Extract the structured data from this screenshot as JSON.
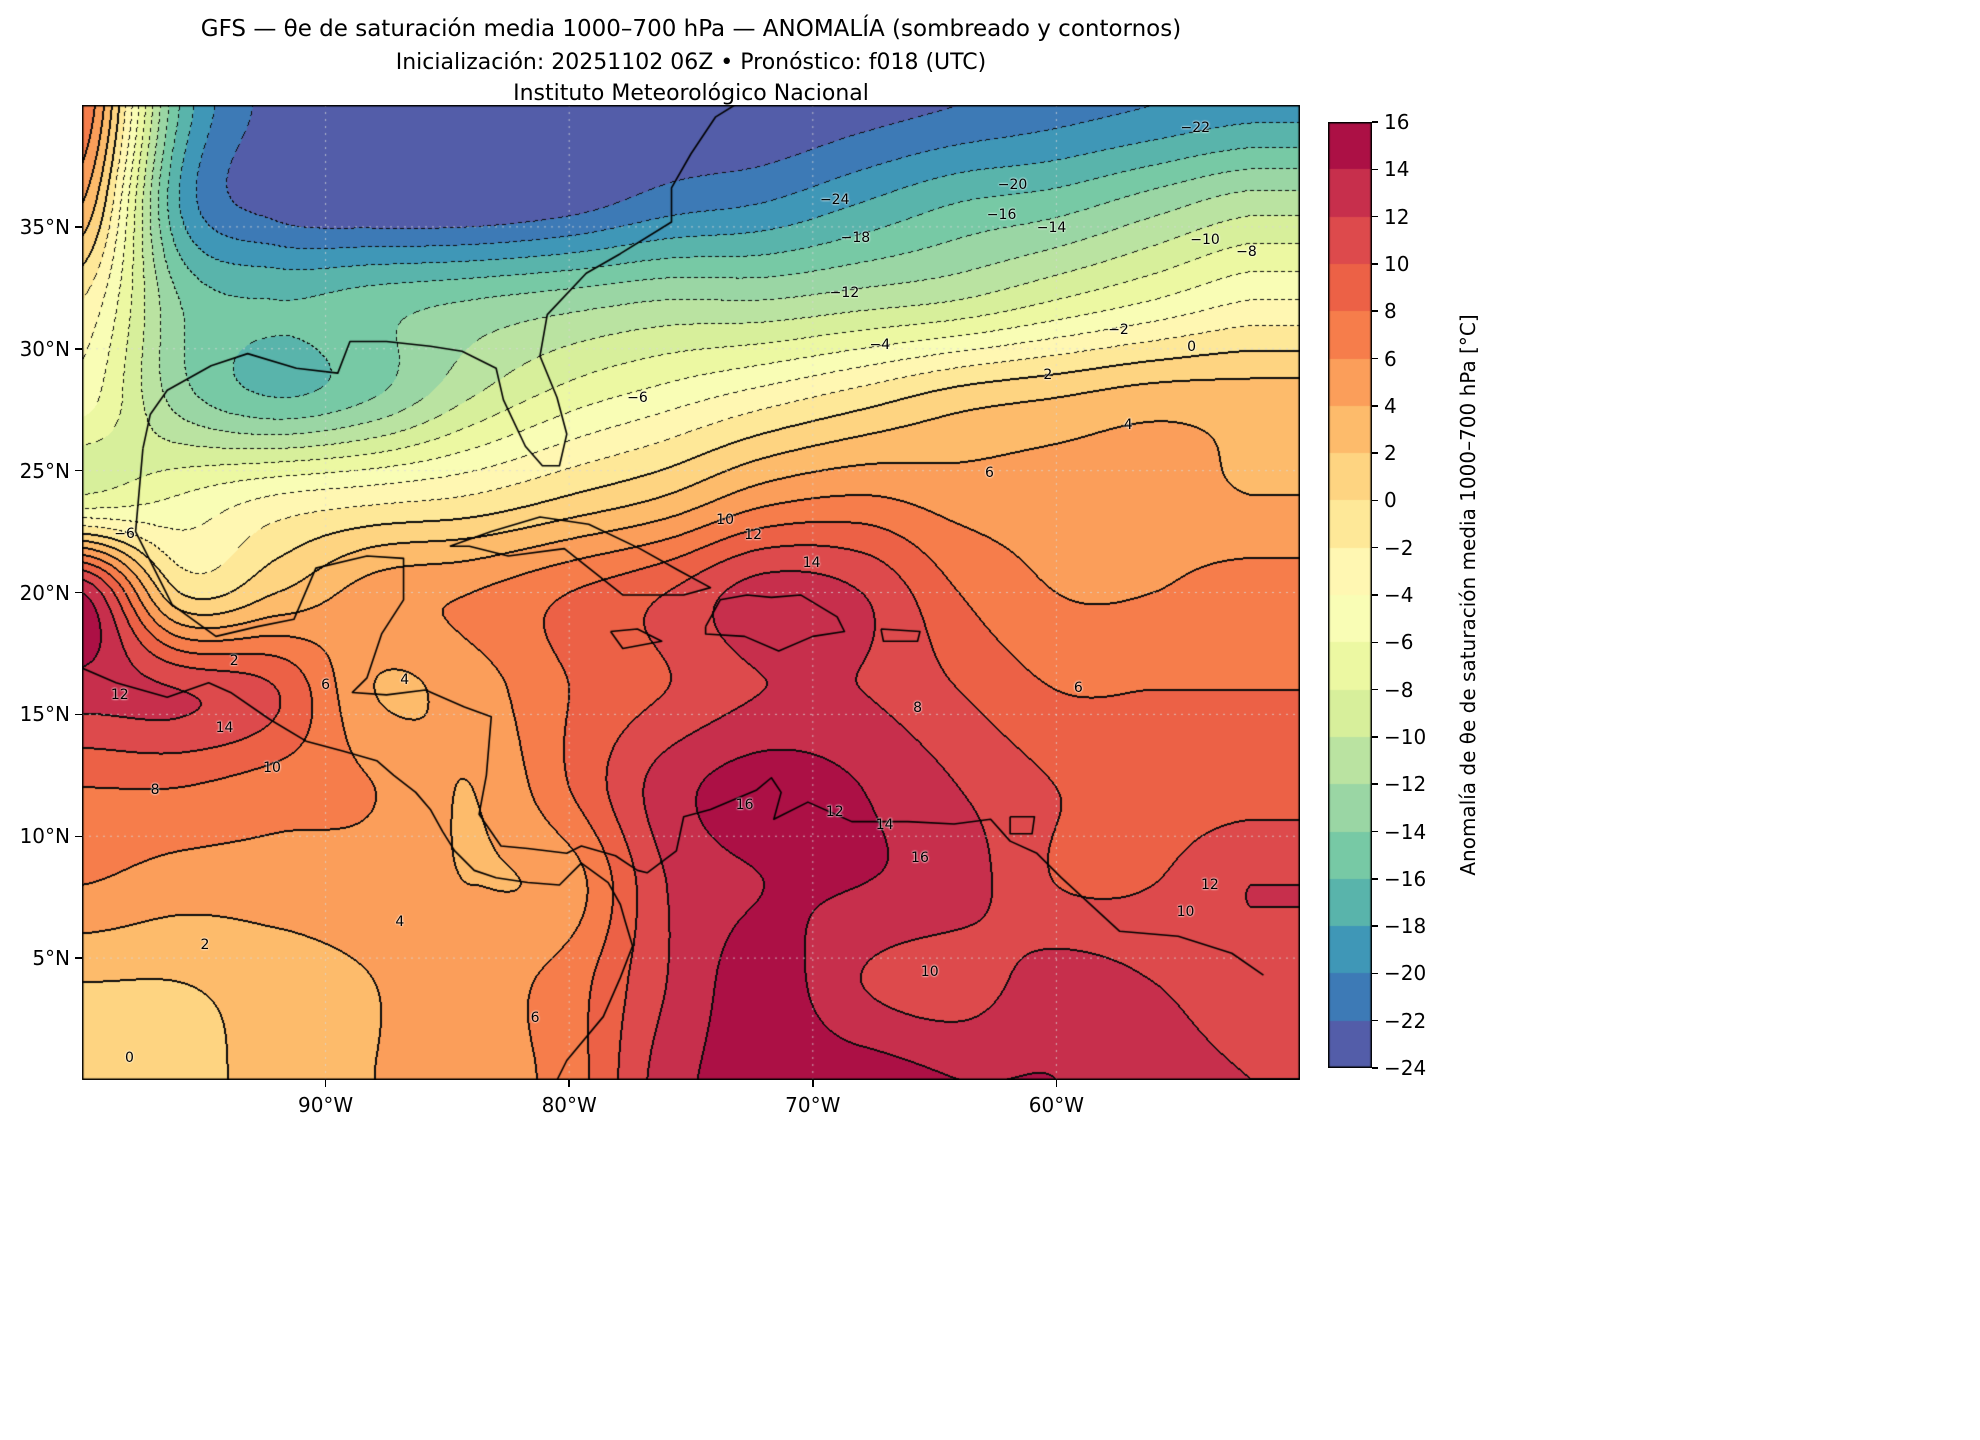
{
  "header": {
    "title_line1": "GFS — θe de saturación media 1000–700 hPa — ANOMALÍA (sombreado y contornos)",
    "title_line2": "Inicialización: 20251102 06Z   •   Pronóstico: f018 (UTC)",
    "title_line3": "Instituto Meteorológico Nacional"
  },
  "chart_data": {
    "type": "heatmap",
    "title": "GFS — θe de saturación media 1000–700 hPa — ANOMALÍA (sombreado y contornos)",
    "subtitle": "Inicialización: 20251102 06Z  •  Pronóstico: f018 (UTC)",
    "source": "Instituto Meteorológico Nacional",
    "lon_range": [
      -100,
      -50
    ],
    "lat_range": [
      0,
      40
    ],
    "contour_interval": 2,
    "negative_contour_style": "dotted",
    "positive_contour_style": "solid",
    "x_ticks": [
      {
        "label": "90°W",
        "lon": -90
      },
      {
        "label": "80°W",
        "lon": -80
      },
      {
        "label": "70°W",
        "lon": -70
      },
      {
        "label": "60°W",
        "lon": -60
      }
    ],
    "y_ticks": [
      {
        "label": "35°N",
        "lat": 35
      },
      {
        "label": "30°N",
        "lat": 30
      },
      {
        "label": "25°N",
        "lat": 25
      },
      {
        "label": "20°N",
        "lat": 20
      },
      {
        "label": "15°N",
        "lat": 15
      },
      {
        "label": "10°N",
        "lat": 10
      },
      {
        "label": "5°N",
        "lat": 5
      }
    ],
    "gridlines": {
      "lons": [
        -90,
        -80,
        -70,
        -60
      ],
      "lats": [
        5,
        10,
        15,
        20,
        25,
        30,
        35
      ]
    },
    "colorbar": {
      "label": "Anomalía de θe de saturación media 1000–700 hPa [°C]",
      "min": -24,
      "max": 16,
      "colormap": "Spectral_r",
      "spectral_anchors": [
        "#9e0142",
        "#d53e4f",
        "#f46d43",
        "#fdae61",
        "#fee08b",
        "#ffffbf",
        "#e6f598",
        "#abdda4",
        "#66c2a5",
        "#3288bd",
        "#5e4fa2"
      ],
      "tick_values": [
        16,
        14,
        12,
        10,
        8,
        6,
        4,
        2,
        0,
        -2,
        -4,
        -6,
        -8,
        -10,
        -12,
        -14,
        -16,
        -18,
        -20,
        -22,
        -24
      ],
      "tick_labels": [
        "16",
        "14",
        "12",
        "10",
        "8",
        "6",
        "4",
        "2",
        "0",
        "−2",
        "−4",
        "−6",
        "−8",
        "−10",
        "−12",
        "−14",
        "−16",
        "−18",
        "−20",
        "−22",
        "−24"
      ]
    },
    "grid": {
      "lons": [
        -100,
        -96,
        -92,
        -88,
        -84,
        -80,
        -76,
        -72,
        -68,
        -64,
        -60,
        -56,
        -52
      ],
      "lats": [
        40,
        36,
        32,
        28,
        24,
        20,
        16,
        12,
        8,
        4,
        0
      ],
      "values": [
        [
          8,
          -16,
          -23,
          -25,
          -25,
          -25,
          -24,
          -24,
          -23,
          -22,
          -21,
          -20,
          -19
        ],
        [
          4,
          -18,
          -23,
          -24,
          -24,
          -23,
          -21,
          -20,
          -18,
          -16,
          -15,
          -13,
          -11
        ],
        [
          -2,
          -14,
          -16,
          -15,
          -14,
          -13,
          -12,
          -12,
          -11,
          -10,
          -8,
          -6,
          -4
        ],
        [
          -5,
          -13,
          -16,
          -14,
          -10,
          -7,
          -5,
          -3,
          -1,
          1,
          2,
          3,
          3
        ],
        [
          -8,
          -6,
          -4,
          -3,
          -2,
          0,
          2,
          5,
          6,
          5,
          5,
          5,
          4
        ],
        [
          14,
          0,
          2,
          5,
          6,
          8,
          10,
          13,
          12,
          8,
          6,
          6,
          7
        ],
        [
          13,
          12,
          10,
          4,
          5,
          8,
          10,
          12,
          12,
          10,
          8,
          8,
          8
        ],
        [
          8,
          8,
          7,
          6,
          4,
          8,
          13,
          15,
          14,
          12,
          10,
          9,
          9
        ],
        [
          6,
          5,
          5,
          5,
          4,
          5,
          12,
          14,
          14,
          13,
          10,
          10,
          12
        ],
        [
          2,
          2,
          3,
          4,
          5,
          7,
          12,
          15,
          12,
          11,
          13,
          12,
          11
        ],
        [
          0,
          1,
          3,
          4,
          5,
          7,
          13,
          15,
          15,
          14,
          14,
          13,
          12
        ]
      ]
    },
    "contour_labels": [
      {
        "t": "−24",
        "x": 61.8,
        "y": 9.7
      },
      {
        "t": "−22",
        "x": 91.4,
        "y": 2.4
      },
      {
        "t": "−20",
        "x": 76.4,
        "y": 8.2
      },
      {
        "t": "−18",
        "x": 63.5,
        "y": 13.6
      },
      {
        "t": "−16",
        "x": 75.5,
        "y": 11.3
      },
      {
        "t": "−14",
        "x": 79.6,
        "y": 12.6
      },
      {
        "t": "−12",
        "x": 62.6,
        "y": 19.3
      },
      {
        "t": "−10",
        "x": 92.2,
        "y": 13.8
      },
      {
        "t": "−8",
        "x": 95.6,
        "y": 15.1
      },
      {
        "t": "−6",
        "x": 45.6,
        "y": 30.1
      },
      {
        "t": "−4",
        "x": 65.5,
        "y": 24.6
      },
      {
        "t": "−2",
        "x": 85.1,
        "y": 23.1
      },
      {
        "t": "0",
        "x": 91.1,
        "y": 24.8
      },
      {
        "t": "2",
        "x": 79.3,
        "y": 27.7
      },
      {
        "t": "4",
        "x": 85.9,
        "y": 32.8
      },
      {
        "t": "6",
        "x": 74.5,
        "y": 37.7
      },
      {
        "t": "10",
        "x": 52.8,
        "y": 42.6
      },
      {
        "t": "12",
        "x": 55.1,
        "y": 44.1
      },
      {
        "t": "14",
        "x": 59.9,
        "y": 47.0
      },
      {
        "t": "6",
        "x": 81.8,
        "y": 59.8
      },
      {
        "t": "8",
        "x": 68.6,
        "y": 61.8
      },
      {
        "t": "10",
        "x": 15.6,
        "y": 68.0
      },
      {
        "t": "8",
        "x": 6.0,
        "y": 70.3
      },
      {
        "t": "14",
        "x": 11.7,
        "y": 63.9
      },
      {
        "t": "12",
        "x": 3.1,
        "y": 60.5
      },
      {
        "t": "16",
        "x": 54.4,
        "y": 71.8
      },
      {
        "t": "12",
        "x": 61.8,
        "y": 72.5
      },
      {
        "t": "14",
        "x": 65.9,
        "y": 73.8
      },
      {
        "t": "16",
        "x": 68.8,
        "y": 77.2
      },
      {
        "t": "12",
        "x": 92.6,
        "y": 80.0
      },
      {
        "t": "10",
        "x": 90.6,
        "y": 82.8
      },
      {
        "t": "10",
        "x": 69.6,
        "y": 88.9
      },
      {
        "t": "6",
        "x": 37.2,
        "y": 93.6
      },
      {
        "t": "4",
        "x": 26.1,
        "y": 83.8
      },
      {
        "t": "2",
        "x": 10.1,
        "y": 86.2
      },
      {
        "t": "0",
        "x": 3.9,
        "y": 97.7
      },
      {
        "t": "−6",
        "x": 3.5,
        "y": 44.0
      },
      {
        "t": "2",
        "x": 12.5,
        "y": 57.0
      },
      {
        "t": "4",
        "x": 26.5,
        "y": 59.0
      },
      {
        "t": "6",
        "x": 20.0,
        "y": 59.5
      }
    ],
    "coastlines": [
      [
        [
          -97.5,
          25.9
        ],
        [
          -97.2,
          27.3
        ],
        [
          -96.5,
          28.3
        ],
        [
          -94.7,
          29.3
        ],
        [
          -93.2,
          29.8
        ],
        [
          -91.2,
          29.2
        ],
        [
          -89.5,
          29.0
        ],
        [
          -89.0,
          30.3
        ],
        [
          -87.5,
          30.3
        ],
        [
          -85.7,
          30.1
        ],
        [
          -84.4,
          29.9
        ],
        [
          -83.0,
          29.2
        ],
        [
          -82.7,
          27.9
        ],
        [
          -81.8,
          26.0
        ],
        [
          -81.1,
          25.2
        ],
        [
          -80.4,
          25.2
        ],
        [
          -80.1,
          26.5
        ],
        [
          -80.5,
          28.0
        ],
        [
          -81.2,
          29.7
        ],
        [
          -80.9,
          31.4
        ],
        [
          -79.3,
          33.1
        ],
        [
          -77.9,
          33.9
        ],
        [
          -75.8,
          35.2
        ],
        [
          -75.8,
          36.6
        ],
        [
          -75.0,
          38.0
        ],
        [
          -74.0,
          39.5
        ],
        [
          -73.2,
          40.0
        ]
      ],
      [
        [
          -97.5,
          25.9
        ],
        [
          -97.8,
          22.5
        ],
        [
          -96.3,
          19.5
        ],
        [
          -94.5,
          18.2
        ],
        [
          -92.8,
          18.6
        ],
        [
          -91.3,
          18.9
        ],
        [
          -90.4,
          21.0
        ],
        [
          -88.3,
          21.5
        ],
        [
          -86.8,
          21.4
        ],
        [
          -86.8,
          19.7
        ],
        [
          -87.7,
          18.3
        ],
        [
          -88.3,
          16.5
        ],
        [
          -88.9,
          15.9
        ],
        [
          -87.5,
          15.8
        ],
        [
          -85.9,
          16.0
        ],
        [
          -84.3,
          15.3
        ],
        [
          -83.2,
          14.9
        ],
        [
          -83.4,
          12.5
        ],
        [
          -83.7,
          10.9
        ],
        [
          -82.8,
          9.6
        ],
        [
          -81.7,
          9.5
        ],
        [
          -80.1,
          9.3
        ],
        [
          -79.5,
          9.6
        ],
        [
          -78.1,
          9.2
        ],
        [
          -77.2,
          8.6
        ],
        [
          -76.8,
          8.5
        ],
        [
          -75.6,
          9.4
        ],
        [
          -75.3,
          10.8
        ],
        [
          -74.2,
          11.1
        ],
        [
          -72.3,
          11.9
        ],
        [
          -71.7,
          12.4
        ],
        [
          -71.3,
          11.8
        ],
        [
          -71.6,
          10.7
        ],
        [
          -70.2,
          11.4
        ],
        [
          -68.4,
          10.6
        ],
        [
          -66.1,
          10.6
        ],
        [
          -64.2,
          10.5
        ],
        [
          -62.7,
          10.7
        ],
        [
          -61.9,
          9.8
        ],
        [
          -60.8,
          9.3
        ],
        [
          -59.8,
          8.3
        ],
        [
          -57.4,
          6.1
        ],
        [
          -55.0,
          5.9
        ],
        [
          -52.8,
          5.2
        ],
        [
          -51.5,
          4.3
        ]
      ],
      [
        [
          -100.0,
          16.9
        ],
        [
          -98.6,
          16.3
        ],
        [
          -96.5,
          15.7
        ],
        [
          -94.8,
          16.3
        ],
        [
          -93.9,
          15.9
        ],
        [
          -92.3,
          14.8
        ],
        [
          -90.8,
          13.9
        ],
        [
          -89.3,
          13.5
        ],
        [
          -87.9,
          13.1
        ],
        [
          -87.2,
          12.5
        ],
        [
          -86.3,
          11.8
        ],
        [
          -85.7,
          11.1
        ],
        [
          -85.2,
          10.2
        ],
        [
          -84.7,
          9.4
        ],
        [
          -83.9,
          8.6
        ],
        [
          -83.0,
          8.3
        ],
        [
          -81.7,
          8.1
        ],
        [
          -80.4,
          8.0
        ],
        [
          -79.5,
          8.9
        ],
        [
          -78.4,
          8.1
        ],
        [
          -77.9,
          7.2
        ],
        [
          -77.7,
          6.5
        ],
        [
          -77.4,
          5.5
        ],
        [
          -77.9,
          4.2
        ],
        [
          -78.6,
          2.6
        ],
        [
          -80.1,
          0.8
        ],
        [
          -80.5,
          0.0
        ]
      ],
      [
        [
          -84.9,
          21.9
        ],
        [
          -83.2,
          22.5
        ],
        [
          -81.2,
          23.1
        ],
        [
          -79.2,
          22.8
        ],
        [
          -77.1,
          21.8
        ],
        [
          -75.5,
          20.9
        ],
        [
          -74.2,
          20.2
        ],
        [
          -75.3,
          19.9
        ],
        [
          -77.8,
          19.9
        ],
        [
          -80.2,
          21.8
        ],
        [
          -82.5,
          21.5
        ],
        [
          -84.1,
          21.9
        ],
        [
          -84.9,
          21.9
        ]
      ],
      [
        [
          -74.4,
          18.6
        ],
        [
          -73.8,
          19.7
        ],
        [
          -72.7,
          19.9
        ],
        [
          -71.7,
          19.8
        ],
        [
          -70.5,
          19.9
        ],
        [
          -69.0,
          19.0
        ],
        [
          -68.7,
          18.4
        ],
        [
          -70.0,
          18.2
        ],
        [
          -71.4,
          17.6
        ],
        [
          -72.8,
          18.2
        ],
        [
          -74.4,
          18.3
        ],
        [
          -74.4,
          18.6
        ]
      ],
      [
        [
          -78.3,
          18.4
        ],
        [
          -77.2,
          18.5
        ],
        [
          -76.2,
          18.0
        ],
        [
          -77.8,
          17.7
        ],
        [
          -78.3,
          18.4
        ]
      ],
      [
        [
          -67.2,
          18.5
        ],
        [
          -65.6,
          18.4
        ],
        [
          -65.7,
          18.0
        ],
        [
          -67.1,
          18.0
        ],
        [
          -67.2,
          18.5
        ]
      ],
      [
        [
          -61.9,
          10.8
        ],
        [
          -60.9,
          10.8
        ],
        [
          -61.0,
          10.1
        ],
        [
          -61.9,
          10.1
        ],
        [
          -61.9,
          10.8
        ]
      ]
    ]
  }
}
